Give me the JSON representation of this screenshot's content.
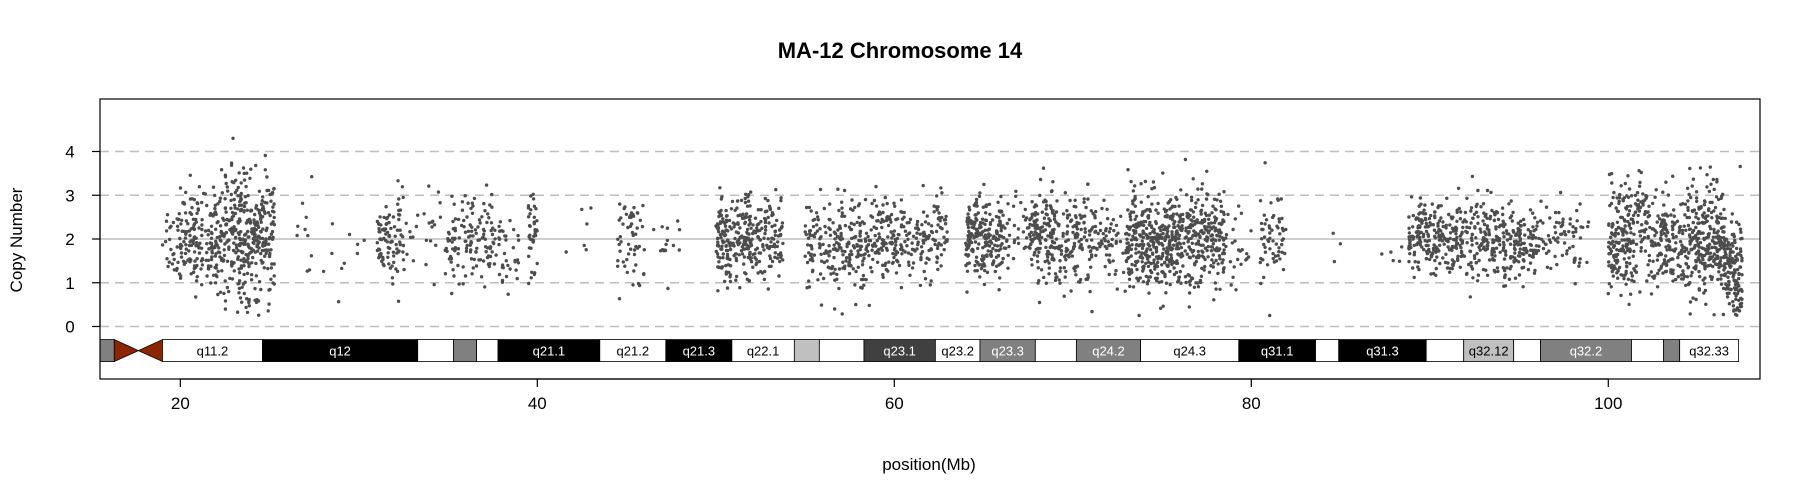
{
  "chart_data": {
    "type": "scatter",
    "title": "MA-12  Chromosome 14",
    "xlabel": "position(Mb)",
    "ylabel": "Copy Number",
    "xlim": [
      15.5,
      108.5
    ],
    "ylim": [
      -1.2,
      5.2
    ],
    "x_ticks": [
      20,
      40,
      60,
      80,
      100
    ],
    "y_ticks": [
      0,
      1,
      2,
      3,
      4
    ],
    "dashed_reference_lines": [
      0,
      1,
      3,
      4
    ],
    "solid_reference_line": 2,
    "grid": false,
    "point_color": "#4d4d4d",
    "series": [
      {
        "clusters": [
          {
            "start": 19.0,
            "end": 20.0,
            "count": 30,
            "mean": 2.0,
            "sd": 0.45
          },
          {
            "start": 20.0,
            "end": 22.5,
            "count": 200,
            "mean": 2.0,
            "sd": 0.55
          },
          {
            "start": 22.5,
            "end": 24.5,
            "count": 260,
            "mean": 2.05,
            "sd": 0.7
          },
          {
            "start": 24.5,
            "end": 25.3,
            "count": 90,
            "mean": 2.0,
            "sd": 0.75
          },
          {
            "start": 26.5,
            "end": 27.5,
            "count": 10,
            "mean": 2.2,
            "sd": 0.5
          },
          {
            "start": 28.0,
            "end": 30.5,
            "count": 10,
            "mean": 1.7,
            "sd": 0.5
          },
          {
            "start": 31.0,
            "end": 32.5,
            "count": 90,
            "mean": 2.0,
            "sd": 0.5
          },
          {
            "start": 32.5,
            "end": 35.0,
            "count": 30,
            "mean": 2.0,
            "sd": 0.45
          },
          {
            "start": 35.0,
            "end": 37.5,
            "count": 120,
            "mean": 1.9,
            "sd": 0.55
          },
          {
            "start": 37.5,
            "end": 39.0,
            "count": 40,
            "mean": 1.8,
            "sd": 0.5
          },
          {
            "start": 39.5,
            "end": 40.0,
            "count": 40,
            "mean": 1.95,
            "sd": 0.6
          },
          {
            "start": 41.5,
            "end": 43.0,
            "count": 6,
            "mean": 2.2,
            "sd": 0.4
          },
          {
            "start": 44.5,
            "end": 46.0,
            "count": 55,
            "mean": 2.0,
            "sd": 0.55
          },
          {
            "start": 46.5,
            "end": 48.0,
            "count": 15,
            "mean": 2.0,
            "sd": 0.4
          },
          {
            "start": 50.0,
            "end": 52.0,
            "count": 200,
            "mean": 2.0,
            "sd": 0.5
          },
          {
            "start": 52.0,
            "end": 53.8,
            "count": 110,
            "mean": 1.95,
            "sd": 0.45
          },
          {
            "start": 55.0,
            "end": 57.0,
            "count": 110,
            "mean": 1.9,
            "sd": 0.5
          },
          {
            "start": 57.0,
            "end": 59.5,
            "count": 160,
            "mean": 1.95,
            "sd": 0.5
          },
          {
            "start": 59.5,
            "end": 63.0,
            "count": 180,
            "mean": 2.0,
            "sd": 0.45
          },
          {
            "start": 64.0,
            "end": 66.0,
            "count": 210,
            "mean": 2.0,
            "sd": 0.5
          },
          {
            "start": 66.0,
            "end": 67.5,
            "count": 40,
            "mean": 2.0,
            "sd": 0.45
          },
          {
            "start": 67.5,
            "end": 69.0,
            "count": 150,
            "mean": 2.05,
            "sd": 0.5
          },
          {
            "start": 69.0,
            "end": 72.0,
            "count": 170,
            "mean": 2.0,
            "sd": 0.5
          },
          {
            "start": 72.0,
            "end": 73.0,
            "count": 30,
            "mean": 2.0,
            "sd": 0.45
          },
          {
            "start": 73.0,
            "end": 76.0,
            "count": 380,
            "mean": 1.95,
            "sd": 0.55
          },
          {
            "start": 76.0,
            "end": 78.5,
            "count": 250,
            "mean": 2.0,
            "sd": 0.55
          },
          {
            "start": 78.5,
            "end": 80.0,
            "count": 25,
            "mean": 1.8,
            "sd": 0.45
          },
          {
            "start": 80.5,
            "end": 82.0,
            "count": 60,
            "mean": 1.95,
            "sd": 0.5
          },
          {
            "start": 84.5,
            "end": 85.0,
            "count": 3,
            "mean": 2.0,
            "sd": 0.2
          },
          {
            "start": 87.0,
            "end": 88.5,
            "count": 5,
            "mean": 1.6,
            "sd": 0.4
          },
          {
            "start": 88.8,
            "end": 90.5,
            "count": 130,
            "mean": 2.0,
            "sd": 0.4
          },
          {
            "start": 90.5,
            "end": 96.0,
            "count": 380,
            "mean": 2.0,
            "sd": 0.45
          },
          {
            "start": 96.0,
            "end": 98.5,
            "count": 70,
            "mean": 2.0,
            "sd": 0.45
          },
          {
            "start": 98.5,
            "end": 99.5,
            "count": 4,
            "mean": 2.2,
            "sd": 0.4
          },
          {
            "start": 100.0,
            "end": 101.5,
            "count": 170,
            "mean": 2.0,
            "sd": 0.55
          },
          {
            "start": 101.5,
            "end": 102.0,
            "count": 40,
            "mean": 2.2,
            "sd": 0.7
          },
          {
            "start": 102.0,
            "end": 104.5,
            "count": 200,
            "mean": 2.0,
            "sd": 0.5
          },
          {
            "start": 104.5,
            "end": 106.5,
            "count": 250,
            "mean": 1.95,
            "sd": 0.6
          },
          {
            "start": 106.5,
            "end": 107.5,
            "count": 140,
            "mean": 1.3,
            "sd": 0.55
          }
        ]
      }
    ],
    "ideogram": {
      "y_center": -0.55,
      "bands": [
        {
          "start": 15.5,
          "end": 16.3,
          "label": "",
          "color": "#808080",
          "text_color": "#ffffff"
        },
        {
          "start": 16.3,
          "end": 19.0,
          "label": "",
          "color": "#8b2500",
          "text_color": "#ffffff",
          "centromere": true
        },
        {
          "start": 19.0,
          "end": 24.6,
          "label": "q11.2",
          "color": "#ffffff",
          "text_color": "#000000"
        },
        {
          "start": 24.6,
          "end": 33.3,
          "label": "q12",
          "color": "#000000",
          "text_color": "#ffffff"
        },
        {
          "start": 33.3,
          "end": 35.3,
          "label": "",
          "color": "#ffffff",
          "text_color": "#000000"
        },
        {
          "start": 35.3,
          "end": 36.6,
          "label": "",
          "color": "#808080",
          "text_color": "#ffffff"
        },
        {
          "start": 36.6,
          "end": 37.8,
          "label": "",
          "color": "#ffffff",
          "text_color": "#000000"
        },
        {
          "start": 37.8,
          "end": 43.5,
          "label": "q21.1",
          "color": "#000000",
          "text_color": "#ffffff"
        },
        {
          "start": 43.5,
          "end": 47.2,
          "label": "q21.2",
          "color": "#ffffff",
          "text_color": "#000000"
        },
        {
          "start": 47.2,
          "end": 50.9,
          "label": "q21.3",
          "color": "#000000",
          "text_color": "#ffffff"
        },
        {
          "start": 50.9,
          "end": 54.4,
          "label": "q22.1",
          "color": "#ffffff",
          "text_color": "#000000"
        },
        {
          "start": 54.4,
          "end": 55.8,
          "label": "",
          "color": "#c0c0c0",
          "text_color": "#000000"
        },
        {
          "start": 55.8,
          "end": 58.3,
          "label": "",
          "color": "#ffffff",
          "text_color": "#000000"
        },
        {
          "start": 58.3,
          "end": 62.3,
          "label": "q23.1",
          "color": "#404040",
          "text_color": "#ffffff"
        },
        {
          "start": 62.3,
          "end": 64.8,
          "label": "q23.2",
          "color": "#ffffff",
          "text_color": "#000000"
        },
        {
          "start": 64.8,
          "end": 67.9,
          "label": "q23.3",
          "color": "#808080",
          "text_color": "#ffffff"
        },
        {
          "start": 67.9,
          "end": 70.2,
          "label": "",
          "color": "#ffffff",
          "text_color": "#000000"
        },
        {
          "start": 70.2,
          "end": 73.8,
          "label": "q24.2",
          "color": "#808080",
          "text_color": "#ffffff"
        },
        {
          "start": 73.8,
          "end": 79.3,
          "label": "q24.3",
          "color": "#ffffff",
          "text_color": "#000000"
        },
        {
          "start": 79.3,
          "end": 83.6,
          "label": "q31.1",
          "color": "#000000",
          "text_color": "#ffffff"
        },
        {
          "start": 83.6,
          "end": 84.9,
          "label": "",
          "color": "#ffffff",
          "text_color": "#000000"
        },
        {
          "start": 84.9,
          "end": 89.8,
          "label": "q31.3",
          "color": "#000000",
          "text_color": "#ffffff"
        },
        {
          "start": 89.8,
          "end": 91.9,
          "label": "",
          "color": "#ffffff",
          "text_color": "#000000"
        },
        {
          "start": 91.9,
          "end": 94.7,
          "label": "q32.12",
          "color": "#c0c0c0",
          "text_color": "#000000"
        },
        {
          "start": 94.7,
          "end": 96.2,
          "label": "",
          "color": "#ffffff",
          "text_color": "#000000"
        },
        {
          "start": 96.2,
          "end": 101.3,
          "label": "q32.2",
          "color": "#808080",
          "text_color": "#ffffff"
        },
        {
          "start": 101.3,
          "end": 103.1,
          "label": "",
          "color": "#ffffff",
          "text_color": "#000000"
        },
        {
          "start": 103.1,
          "end": 104.0,
          "label": "",
          "color": "#808080",
          "text_color": "#ffffff"
        },
        {
          "start": 104.0,
          "end": 107.3,
          "label": "q32.33",
          "color": "#ffffff",
          "text_color": "#000000"
        }
      ]
    }
  }
}
